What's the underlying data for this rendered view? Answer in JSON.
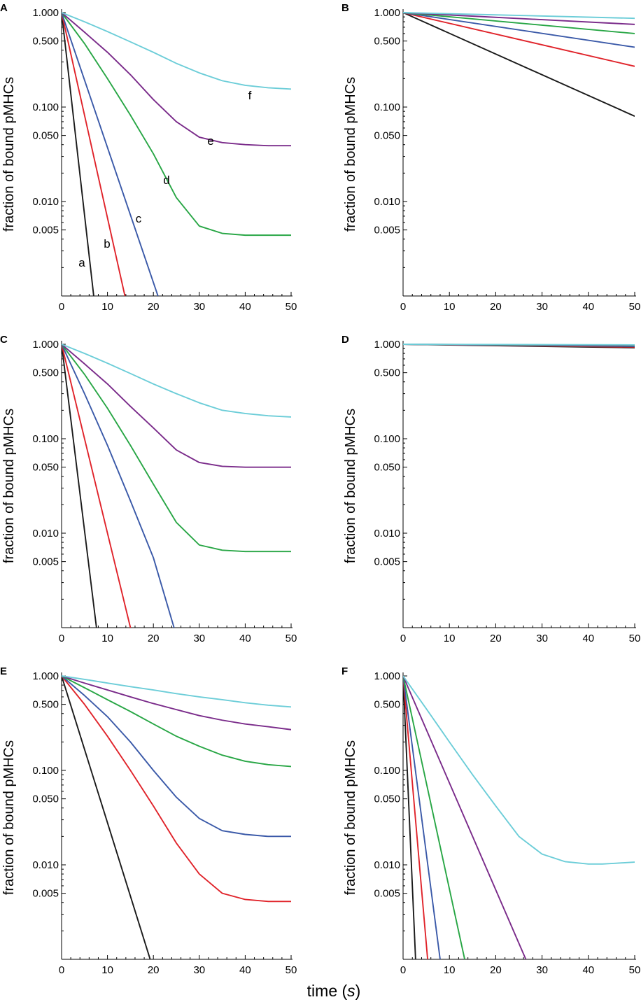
{
  "figure": {
    "xlabel_main": "time",
    "xlabel_unit": "s"
  },
  "colors": {
    "a": "#1a1a1a",
    "b": "#e0232a",
    "c": "#3a59a8",
    "d": "#28a645",
    "e": "#7a2b8a",
    "f": "#6ccdd8"
  },
  "chart_data": [
    {
      "panel": "A",
      "type": "line",
      "ylabel": "fraction of bound pMHCs",
      "yscale": "log",
      "xlim": [
        0,
        50
      ],
      "ylim": [
        0.001,
        1.0
      ],
      "xticks": [
        "0",
        "10",
        "20",
        "30",
        "40",
        "50"
      ],
      "yticks": [
        "1.000",
        "0.500",
        "0.100",
        "0.050",
        "0.010",
        "0.005"
      ],
      "series": [
        {
          "name": "a",
          "label": "a",
          "x": [
            0,
            7
          ],
          "y": [
            1.0,
            0.001
          ]
        },
        {
          "name": "b",
          "label": "b",
          "x": [
            0,
            13.8
          ],
          "y": [
            1.0,
            0.001
          ]
        },
        {
          "name": "c",
          "label": "c",
          "x": [
            0,
            21
          ],
          "y": [
            1.0,
            0.001
          ]
        },
        {
          "name": "d",
          "label": "d",
          "x": [
            0,
            5,
            10,
            15,
            20,
            25,
            30,
            35,
            40,
            45,
            50
          ],
          "y": [
            1.0,
            0.47,
            0.2,
            0.082,
            0.032,
            0.011,
            0.0055,
            0.0046,
            0.0044,
            0.0044,
            0.0044
          ]
        },
        {
          "name": "e",
          "label": "e",
          "x": [
            0,
            5,
            10,
            15,
            20,
            25,
            30,
            35,
            40,
            45,
            50
          ],
          "y": [
            1.0,
            0.62,
            0.38,
            0.22,
            0.12,
            0.07,
            0.048,
            0.042,
            0.04,
            0.039,
            0.039
          ]
        },
        {
          "name": "f",
          "label": "f",
          "x": [
            0,
            5,
            10,
            15,
            20,
            25,
            30,
            35,
            40,
            45,
            50
          ],
          "y": [
            1.0,
            0.8,
            0.63,
            0.49,
            0.38,
            0.29,
            0.23,
            0.19,
            0.17,
            0.16,
            0.155
          ]
        }
      ]
    },
    {
      "panel": "B",
      "type": "line",
      "ylabel": "fraction of bound pMHCs",
      "yscale": "log",
      "xlim": [
        0,
        50
      ],
      "ylim": [
        0.001,
        1.0
      ],
      "xticks": [
        "0",
        "10",
        "20",
        "30",
        "40",
        "50"
      ],
      "yticks": [
        "1.000",
        "0.500",
        "0.100",
        "0.050",
        "0.010",
        "0.005"
      ],
      "series": [
        {
          "name": "a",
          "x": [
            0,
            50
          ],
          "y": [
            1.0,
            0.08
          ]
        },
        {
          "name": "b",
          "x": [
            0,
            50
          ],
          "y": [
            1.0,
            0.27
          ]
        },
        {
          "name": "c",
          "x": [
            0,
            50
          ],
          "y": [
            1.0,
            0.43
          ]
        },
        {
          "name": "d",
          "x": [
            0,
            50
          ],
          "y": [
            1.0,
            0.6
          ]
        },
        {
          "name": "e",
          "x": [
            0,
            50
          ],
          "y": [
            1.0,
            0.75
          ]
        },
        {
          "name": "f",
          "x": [
            0,
            50
          ],
          "y": [
            1.0,
            0.87
          ]
        }
      ]
    },
    {
      "panel": "C",
      "type": "line",
      "ylabel": "fraction of bound pMHCs",
      "yscale": "log",
      "xlim": [
        0,
        50
      ],
      "ylim": [
        0.001,
        1.0
      ],
      "xticks": [
        "0",
        "10",
        "20",
        "30",
        "40",
        "50"
      ],
      "yticks": [
        "1.000",
        "0.500",
        "0.100",
        "0.050",
        "0.010",
        "0.005"
      ],
      "series": [
        {
          "name": "a",
          "x": [
            0,
            7.6
          ],
          "y": [
            1.0,
            0.001
          ]
        },
        {
          "name": "b",
          "x": [
            0,
            15
          ],
          "y": [
            1.0,
            0.001
          ]
        },
        {
          "name": "c",
          "x": [
            0,
            5,
            10,
            15,
            20,
            24.5
          ],
          "y": [
            1.0,
            0.3,
            0.085,
            0.022,
            0.0055,
            0.001
          ]
        },
        {
          "name": "d",
          "x": [
            0,
            5,
            10,
            15,
            20,
            25,
            30,
            35,
            40,
            45,
            50
          ],
          "y": [
            1.0,
            0.48,
            0.21,
            0.085,
            0.033,
            0.013,
            0.0075,
            0.0066,
            0.0064,
            0.0064,
            0.0064
          ]
        },
        {
          "name": "e",
          "x": [
            0,
            5,
            10,
            15,
            20,
            25,
            30,
            35,
            40,
            45,
            50
          ],
          "y": [
            1.0,
            0.62,
            0.38,
            0.22,
            0.13,
            0.076,
            0.056,
            0.051,
            0.05,
            0.05,
            0.05
          ]
        },
        {
          "name": "f",
          "x": [
            0,
            5,
            10,
            15,
            20,
            25,
            30,
            35,
            40,
            45,
            50
          ],
          "y": [
            1.0,
            0.8,
            0.63,
            0.49,
            0.38,
            0.3,
            0.24,
            0.2,
            0.185,
            0.175,
            0.17
          ]
        }
      ]
    },
    {
      "panel": "D",
      "type": "line",
      "ylabel": "fraction of bound pMHCs",
      "yscale": "log",
      "xlim": [
        0,
        50
      ],
      "ylim": [
        0.001,
        1.0
      ],
      "xticks": [
        "0",
        "10",
        "20",
        "30",
        "40",
        "50"
      ],
      "yticks": [
        "1.000",
        "0.500",
        "0.100",
        "0.050",
        "0.010",
        "0.005"
      ],
      "series": [
        {
          "name": "a",
          "x": [
            0,
            50
          ],
          "y": [
            1.0,
            0.92
          ]
        },
        {
          "name": "b",
          "x": [
            0,
            50
          ],
          "y": [
            1.0,
            0.935
          ]
        },
        {
          "name": "c",
          "x": [
            0,
            50
          ],
          "y": [
            1.0,
            0.95
          ]
        },
        {
          "name": "d",
          "x": [
            0,
            50
          ],
          "y": [
            1.0,
            0.965
          ]
        },
        {
          "name": "e",
          "x": [
            0,
            50
          ],
          "y": [
            1.0,
            0.975
          ]
        },
        {
          "name": "f",
          "x": [
            0,
            50
          ],
          "y": [
            1.0,
            0.985
          ]
        }
      ]
    },
    {
      "panel": "E",
      "type": "line",
      "ylabel": "fraction of bound pMHCs",
      "yscale": "log",
      "xlim": [
        0,
        50
      ],
      "ylim": [
        0.001,
        1.0
      ],
      "xticks": [
        "0",
        "10",
        "20",
        "30",
        "40",
        "50"
      ],
      "yticks": [
        "1.000",
        "0.500",
        "0.100",
        "0.050",
        "0.010",
        "0.005"
      ],
      "series": [
        {
          "name": "a",
          "x": [
            0,
            19.3
          ],
          "y": [
            1.0,
            0.001
          ]
        },
        {
          "name": "b",
          "x": [
            0,
            5,
            10,
            15,
            20,
            25,
            30,
            35,
            40,
            45,
            50
          ],
          "y": [
            1.0,
            0.5,
            0.23,
            0.1,
            0.042,
            0.017,
            0.008,
            0.005,
            0.0043,
            0.0041,
            0.0041
          ]
        },
        {
          "name": "c",
          "x": [
            0,
            5,
            10,
            15,
            20,
            25,
            30,
            35,
            40,
            45,
            50
          ],
          "y": [
            1.0,
            0.62,
            0.37,
            0.2,
            0.1,
            0.052,
            0.031,
            0.023,
            0.021,
            0.02,
            0.02
          ]
        },
        {
          "name": "d",
          "x": [
            0,
            5,
            10,
            15,
            20,
            25,
            30,
            35,
            40,
            45,
            50
          ],
          "y": [
            1.0,
            0.75,
            0.56,
            0.42,
            0.31,
            0.23,
            0.18,
            0.145,
            0.125,
            0.115,
            0.11
          ]
        },
        {
          "name": "e",
          "x": [
            0,
            5,
            10,
            15,
            20,
            25,
            30,
            35,
            40,
            45,
            50
          ],
          "y": [
            1.0,
            0.84,
            0.71,
            0.6,
            0.51,
            0.44,
            0.38,
            0.34,
            0.31,
            0.29,
            0.27
          ]
        },
        {
          "name": "f",
          "x": [
            0,
            5,
            10,
            15,
            20,
            25,
            30,
            35,
            40,
            45,
            50
          ],
          "y": [
            1.0,
            0.92,
            0.84,
            0.77,
            0.71,
            0.65,
            0.6,
            0.56,
            0.52,
            0.49,
            0.47
          ]
        }
      ]
    },
    {
      "panel": "F",
      "type": "line",
      "ylabel": "fraction of bound pMHCs",
      "yscale": "log",
      "xlim": [
        0,
        50
      ],
      "ylim": [
        0.001,
        1.0
      ],
      "xticks": [
        "0",
        "10",
        "20",
        "30",
        "40",
        "50"
      ],
      "yticks": [
        "1.000",
        "0.500",
        "0.100",
        "0.050",
        "0.010",
        "0.005"
      ],
      "series": [
        {
          "name": "a",
          "x": [
            0,
            2.7
          ],
          "y": [
            1.0,
            0.001
          ]
        },
        {
          "name": "b",
          "x": [
            0,
            5.3
          ],
          "y": [
            1.0,
            0.001
          ]
        },
        {
          "name": "c",
          "x": [
            0,
            8
          ],
          "y": [
            1.0,
            0.001
          ]
        },
        {
          "name": "d",
          "x": [
            0,
            13.3
          ],
          "y": [
            1.0,
            0.001
          ]
        },
        {
          "name": "e",
          "x": [
            0,
            26.5
          ],
          "y": [
            1.0,
            0.001
          ]
        },
        {
          "name": "f",
          "x": [
            0,
            5,
            10,
            15,
            20,
            25,
            30,
            35,
            40,
            43,
            46,
            50
          ],
          "y": [
            1.0,
            0.45,
            0.2,
            0.09,
            0.042,
            0.02,
            0.013,
            0.0108,
            0.0102,
            0.0102,
            0.0104,
            0.0107
          ]
        }
      ]
    }
  ]
}
